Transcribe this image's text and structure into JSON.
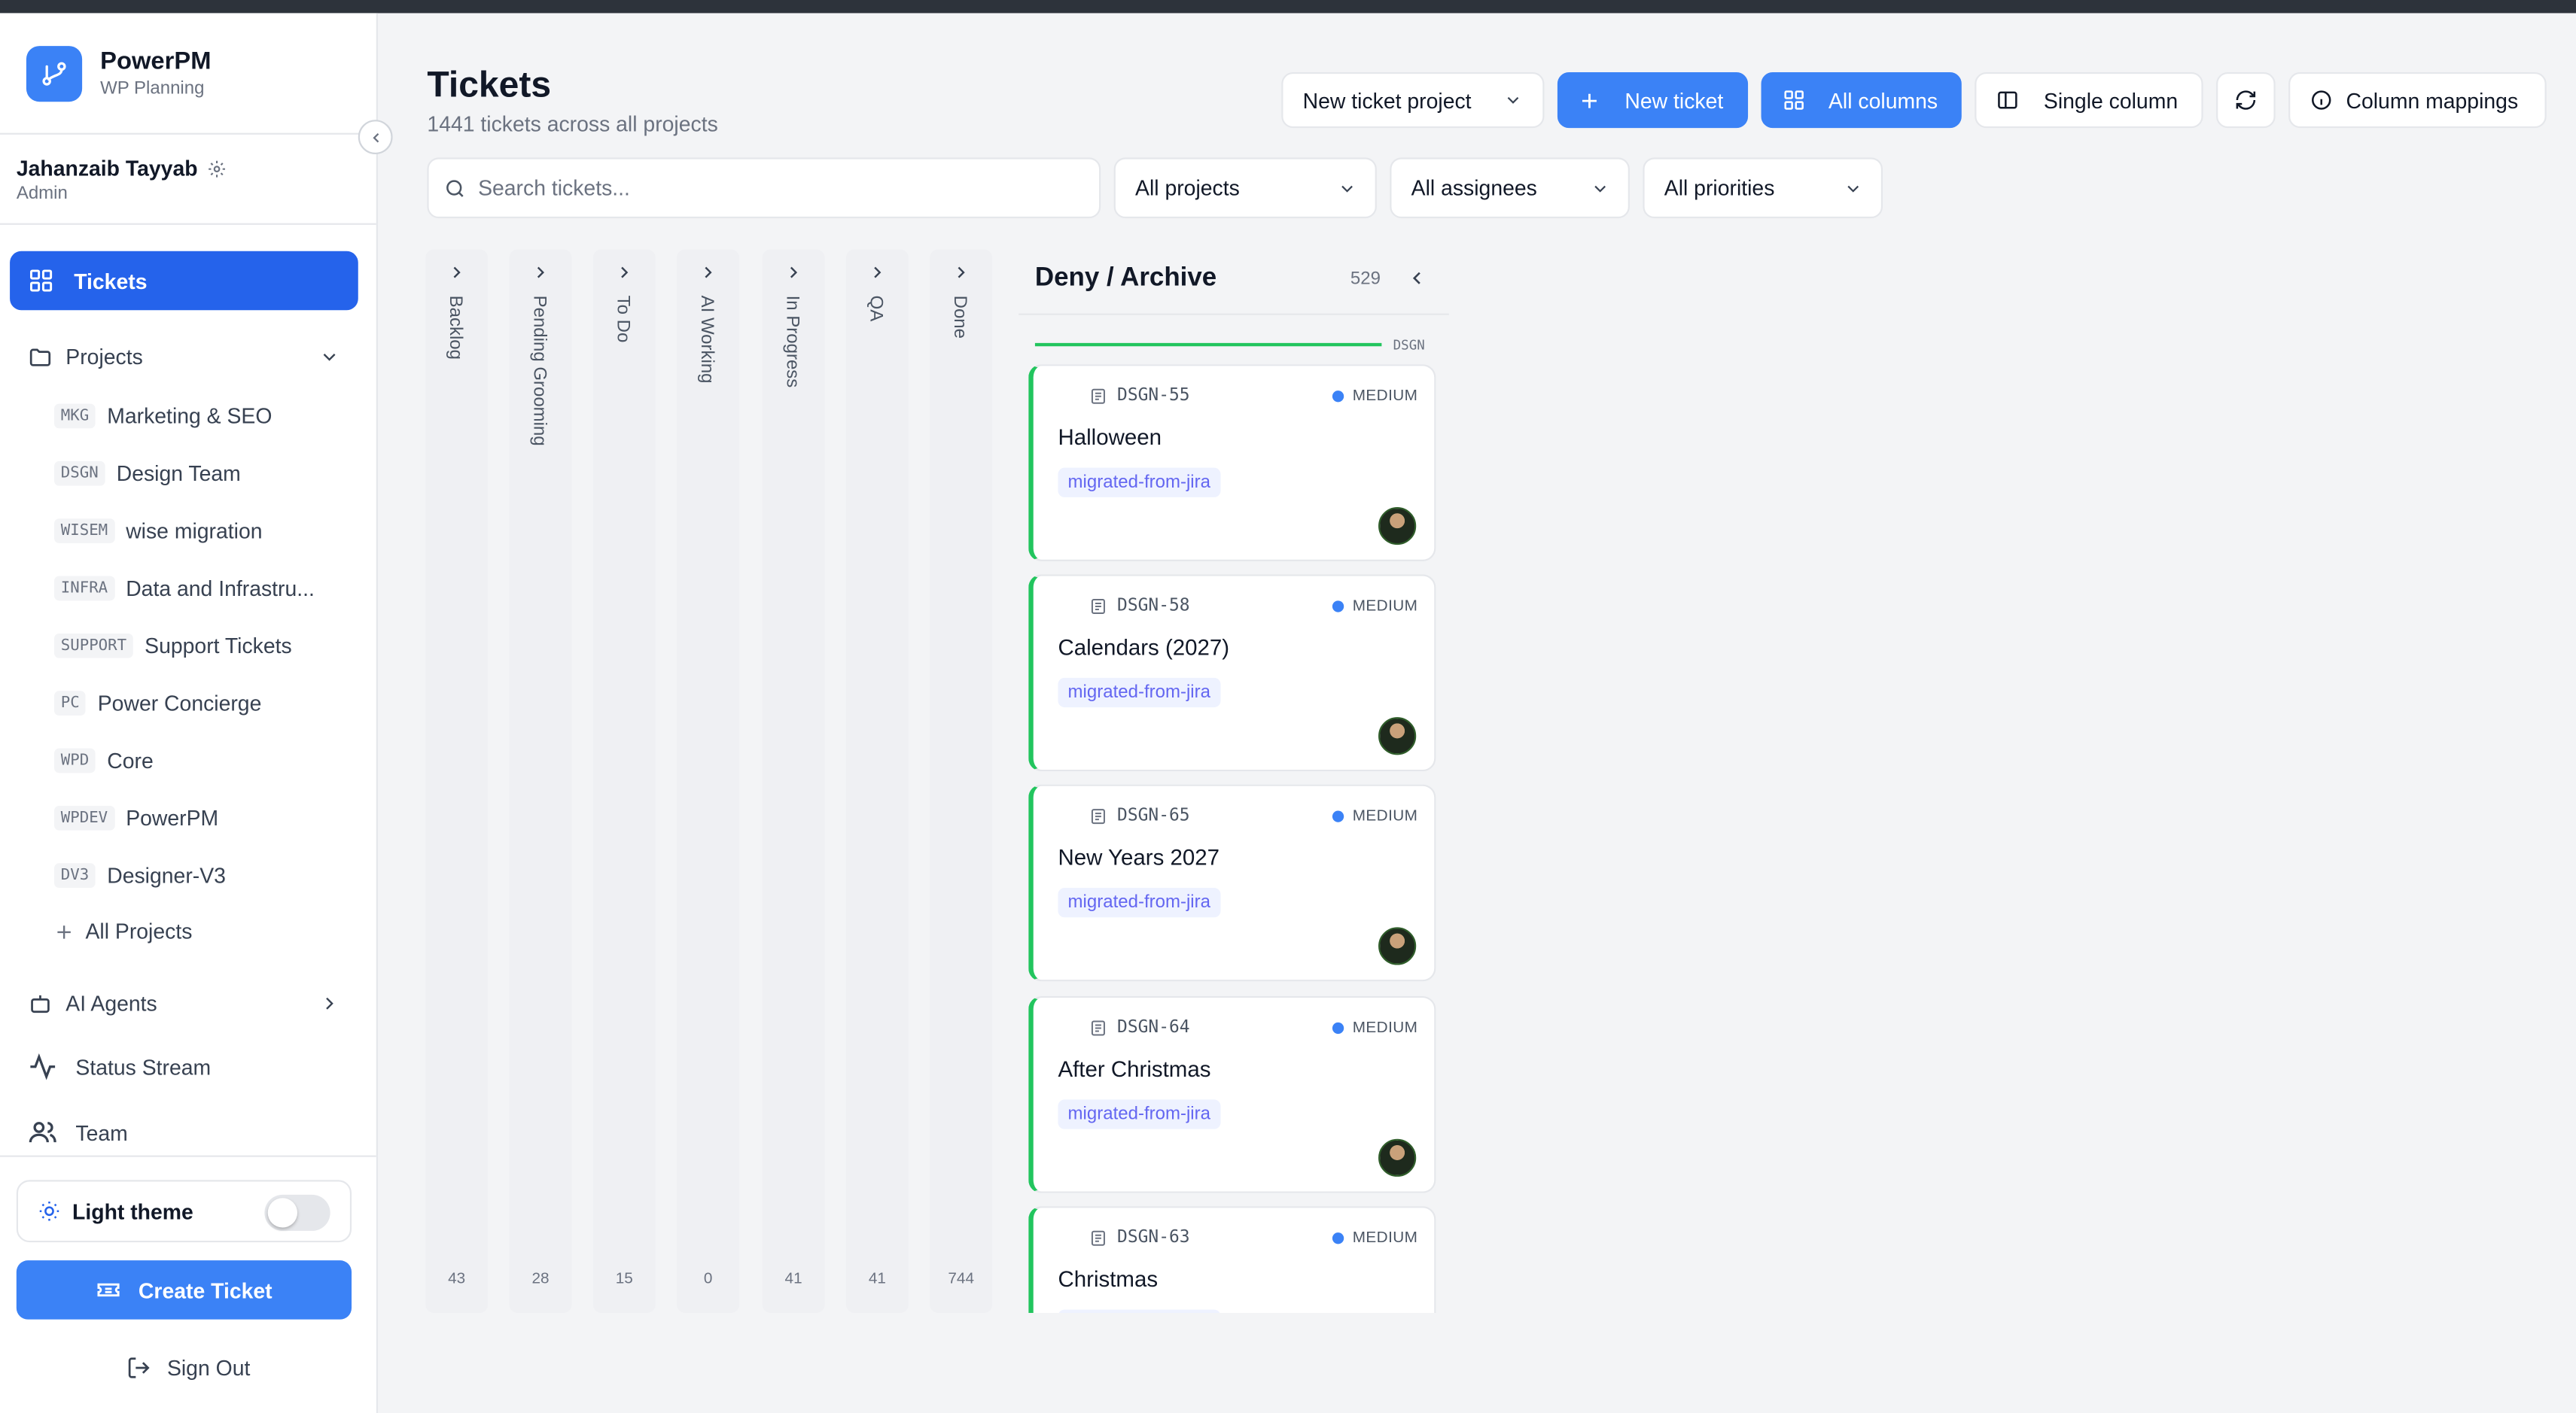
{
  "brand": {
    "name": "PowerPM",
    "subtitle": "WP Planning"
  },
  "user": {
    "name": "Jahanzaib Tayyab",
    "role": "Admin"
  },
  "nav": {
    "tickets": "Tickets",
    "projects": "Projects",
    "ai_agents": "AI Agents",
    "status_stream": "Status Stream",
    "team": "Team"
  },
  "projects": [
    {
      "code": "MKG",
      "name": "Marketing & SEO"
    },
    {
      "code": "DSGN",
      "name": "Design Team"
    },
    {
      "code": "WISEM",
      "name": "wise migration"
    },
    {
      "code": "INFRA",
      "name": "Data and Infrastru..."
    },
    {
      "code": "SUPPORT",
      "name": "Support Tickets"
    },
    {
      "code": "PC",
      "name": "Power Concierge"
    },
    {
      "code": "WPD",
      "name": "Core"
    },
    {
      "code": "WPDEV",
      "name": "PowerPM"
    },
    {
      "code": "DV3",
      "name": "Designer-V3"
    }
  ],
  "all_projects_label": "All Projects",
  "theme": {
    "label": "Light theme",
    "enabled": false
  },
  "create_ticket_label": "Create Ticket",
  "sign_out_label": "Sign Out",
  "header": {
    "title": "Tickets",
    "subtitle": "1441 tickets across all projects"
  },
  "toolbar": {
    "project_select": "New ticket project",
    "new_ticket": "New ticket",
    "all_columns": "All columns",
    "single_column": "Single column",
    "column_mappings": "Column mappings"
  },
  "filters": {
    "search_placeholder": "Search tickets...",
    "projects": "All projects",
    "assignees": "All assignees",
    "priorities": "All priorities"
  },
  "columns": [
    {
      "label": "Backlog",
      "count": "43"
    },
    {
      "label": "Pending Grooming",
      "count": "28"
    },
    {
      "label": "To Do",
      "count": "15"
    },
    {
      "label": "AI Working",
      "count": "0"
    },
    {
      "label": "In Progress",
      "count": "41"
    },
    {
      "label": "QA",
      "count": "41"
    },
    {
      "label": "Done",
      "count": "744"
    }
  ],
  "expanded_column": {
    "title": "Deny / Archive",
    "count": "529",
    "group_label": "DSGN",
    "group_color": "#22c55e",
    "cards": [
      {
        "key": "DSGN-55",
        "priority": "MEDIUM",
        "title": "Halloween",
        "tag": "migrated-from-jira"
      },
      {
        "key": "DSGN-58",
        "priority": "MEDIUM",
        "title": "Calendars (2027)",
        "tag": "migrated-from-jira"
      },
      {
        "key": "DSGN-65",
        "priority": "MEDIUM",
        "title": "New Years 2027",
        "tag": "migrated-from-jira"
      },
      {
        "key": "DSGN-64",
        "priority": "MEDIUM",
        "title": "After Christmas",
        "tag": "migrated-from-jira"
      },
      {
        "key": "DSGN-63",
        "priority": "MEDIUM",
        "title": "Christmas",
        "tag": "migrated-from-jira"
      }
    ]
  },
  "colors": {
    "accent": "#2563eb",
    "primary_button": "#3b82f6",
    "priority_medium": "#3b82f6",
    "tag_text": "#6366f1"
  },
  "icons": {
    "brand": "git-branch-icon",
    "settings": "gear-icon",
    "tickets": "grid-icon",
    "projects": "folder-icon",
    "ai_agents": "bot-icon",
    "status_stream": "activity-icon",
    "team": "users-icon",
    "theme": "sun-icon",
    "create": "ticket-icon",
    "sign_out": "log-out-icon",
    "search": "search-icon",
    "refresh": "refresh-icon",
    "info": "info-icon"
  }
}
